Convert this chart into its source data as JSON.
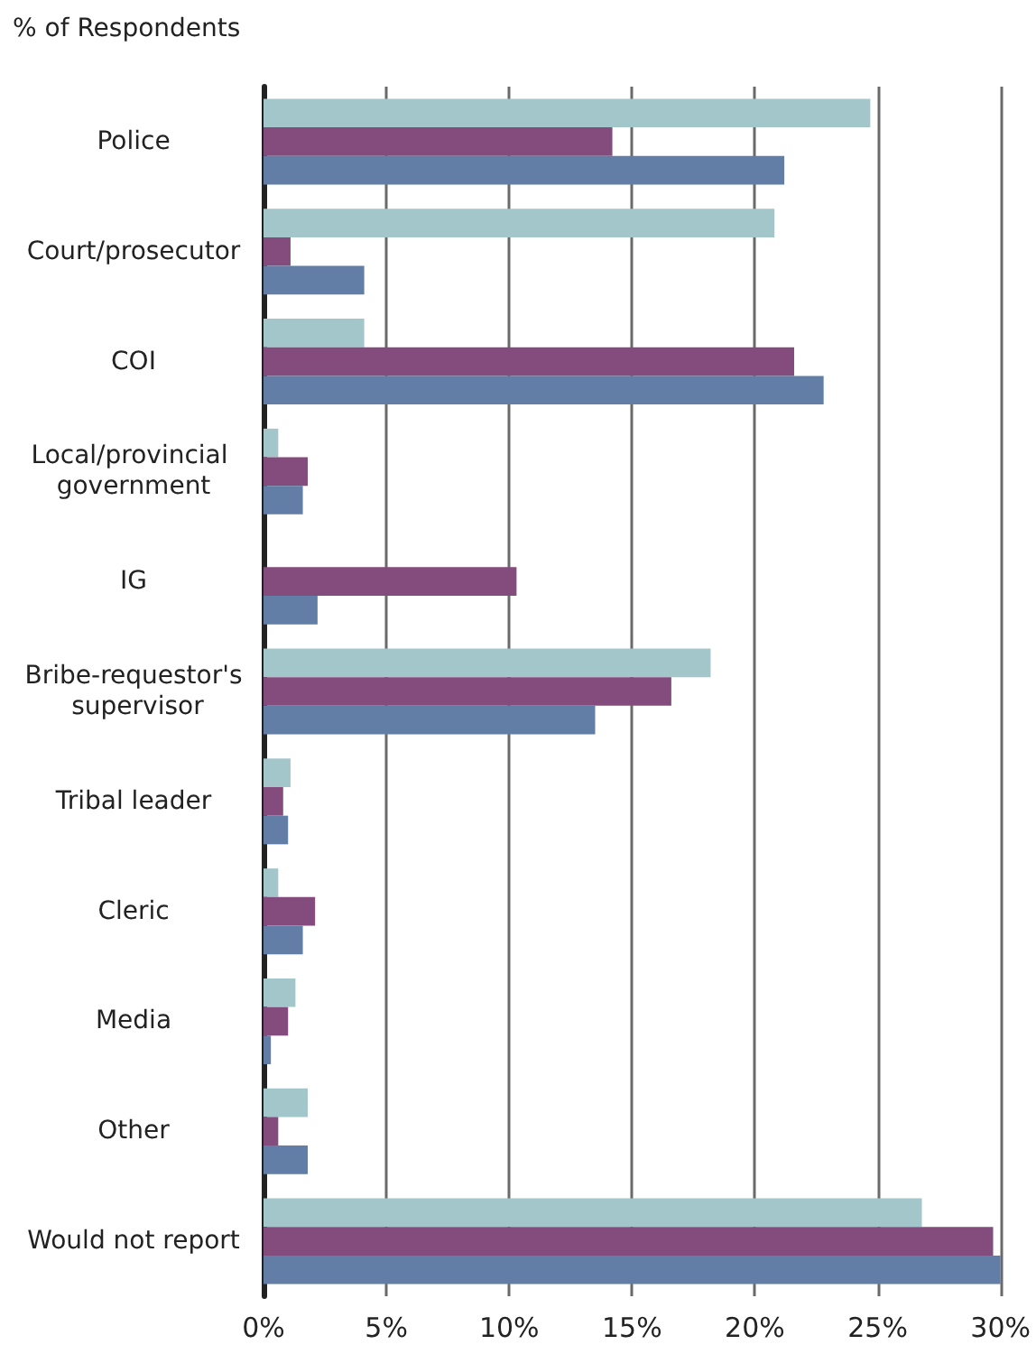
{
  "chart_data": {
    "type": "bar",
    "orientation": "horizontal",
    "xlabel": "% of Respondents",
    "categories": [
      "Police",
      "Court/prosecutor",
      "COI",
      "Local/provincial government",
      "IG",
      "Bribe-requestor's supervisor",
      "Tribal leader",
      "Cleric",
      "Media",
      "Other",
      "Would not report"
    ],
    "series": [
      {
        "color": "#a3c6ca",
        "values": [
          24.7,
          20.8,
          4.1,
          0.6,
          0,
          18.2,
          1.1,
          0.6,
          1.3,
          1.8,
          26.8
        ]
      },
      {
        "color": "#834c7d",
        "values": [
          14.2,
          1.1,
          21.6,
          1.8,
          10.3,
          16.6,
          0.8,
          2.1,
          1.0,
          0.6,
          29.7
        ]
      },
      {
        "color": "#627ea6",
        "values": [
          21.2,
          4.1,
          22.8,
          1.6,
          2.2,
          13.5,
          1.0,
          1.6,
          0.3,
          1.8,
          30.0
        ]
      }
    ],
    "xlim": [
      0,
      30
    ],
    "xticks": [
      {
        "value": 0,
        "label": "0%"
      },
      {
        "value": 5,
        "label": "5%"
      },
      {
        "value": 10,
        "label": "10%"
      },
      {
        "value": 15,
        "label": "15%"
      },
      {
        "value": 20,
        "label": "20%"
      },
      {
        "value": 25,
        "label": "25%"
      },
      {
        "value": 30,
        "label": "30%"
      }
    ],
    "grid": "x"
  }
}
